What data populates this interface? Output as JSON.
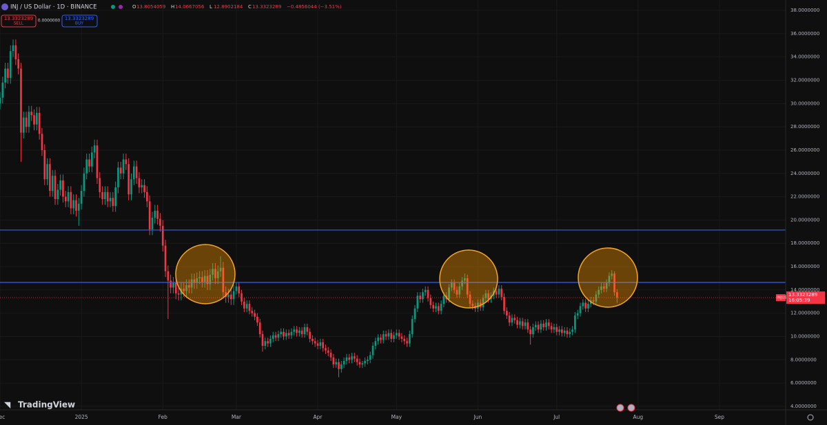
{
  "chart_data": {
    "type": "candlestick",
    "symbol": "INJ / US Dollar · 1D · BINANCE",
    "ohlc_legend": [
      {
        "label": "O",
        "value": "13.8054059"
      },
      {
        "label": "H",
        "value": "14.0667056"
      },
      {
        "label": "L",
        "value": "12.8902184"
      },
      {
        "label": "C",
        "value": "13.3323289"
      }
    ],
    "change": "−0.4856044 (−3.51%)",
    "sell_label": "SELL",
    "buy_label": "BUY",
    "spread": "0.0000000",
    "ticker": "INJUSD",
    "countdown": "16:05:39",
    "logo": "TradingView",
    "up_color": "#089981",
    "down_color": "#f23645",
    "open": [
      30.0,
      30.5,
      31.8,
      33.0,
      32.2,
      34.5,
      35.0,
      33.8,
      33.0,
      27.5,
      28.8,
      28.0,
      29.3,
      29.0,
      28.2,
      29.2,
      27.4,
      26.0,
      23.5,
      24.8,
      22.5,
      23.8,
      21.8,
      22.6,
      23.4,
      22.0,
      21.6,
      22.4,
      21.0,
      21.7,
      20.8,
      21.4,
      22.5,
      24.0,
      25.2,
      24.6,
      25.8,
      26.4,
      23.6,
      22.4,
      21.8,
      22.4,
      21.6,
      21.9,
      21.2,
      22.8,
      24.5,
      24.0,
      25.2,
      24.8,
      22.2,
      23.5,
      24.6,
      23.6,
      22.8,
      23.0,
      22.4,
      21.6,
      19.2,
      20.2,
      20.8,
      20.1,
      19.5,
      17.8,
      15.6,
      14.8,
      14.2,
      14.6,
      13.7,
      13.6,
      14.1,
      13.9,
      14.4,
      14.2,
      14.9,
      14.6,
      15.0,
      15.1,
      14.7,
      15.2,
      14.5,
      15.3,
      15.8,
      15.0,
      15.6,
      15.9,
      13.8,
      13.4,
      13.6,
      13.2,
      13.9,
      14.3,
      13.7,
      13.0,
      12.4,
      12.8,
      12.2,
      12.0,
      11.7,
      11.2,
      10.2,
      9.2,
      9.6,
      9.4,
      9.8,
      10.1,
      9.9,
      10.2,
      10.4,
      10.0,
      10.3,
      10.1,
      10.4,
      10.6,
      10.3,
      10.5,
      10.2,
      10.8,
      10.4,
      9.8,
      9.6,
      9.4,
      9.2,
      9.5,
      9.0,
      8.8,
      8.6,
      8.2,
      7.6,
      7.8,
      7.2,
      7.6,
      7.9,
      8.2,
      8.0,
      8.3,
      8.1,
      7.8,
      7.6,
      7.7,
      7.9,
      8.0,
      8.4,
      9.2,
      9.6,
      9.9,
      9.7,
      10.2,
      10.0,
      10.3,
      9.8,
      10.1,
      10.3,
      10.0,
      9.8,
      9.6,
      9.4,
      10.2,
      11.5,
      12.4,
      13.5,
      13.2,
      13.8,
      14.0,
      13.3,
      12.7,
      12.4,
      12.6,
      12.2,
      12.8,
      13.5,
      13.2,
      14.2,
      14.6,
      14.0,
      13.6,
      14.3,
      14.8,
      15.0,
      13.6,
      12.8,
      12.6,
      12.4,
      12.9,
      12.5,
      13.3,
      13.7,
      13.2,
      13.5,
      13.9,
      13.6,
      14.1,
      13.4,
      12.2,
      11.8,
      11.2,
      11.6,
      11.4,
      11.0,
      11.3,
      10.9,
      11.2,
      10.6,
      10.2,
      10.8,
      11.0,
      10.6,
      11.1,
      10.8,
      11.2,
      10.9,
      10.6,
      10.8,
      10.4,
      10.6,
      10.3,
      10.5,
      10.2,
      10.4,
      10.6,
      11.8,
      12.0,
      12.6,
      12.9,
      12.4,
      12.8,
      13.1,
      13.0,
      13.6,
      14.0,
      14.3,
      14.1,
      14.6,
      15.2,
      15.4,
      13.8054059
    ],
    "high": [
      31.0,
      32.3,
      33.5,
      33.5,
      35.0,
      35.5,
      35.5,
      34.3,
      33.5,
      29.3,
      29.3,
      29.8,
      29.8,
      29.5,
      29.7,
      29.7,
      27.9,
      26.5,
      25.3,
      25.3,
      24.3,
      24.3,
      23.1,
      23.9,
      23.9,
      22.5,
      22.9,
      22.9,
      22.2,
      22.2,
      21.9,
      23.0,
      24.5,
      25.7,
      25.7,
      26.3,
      26.9,
      26.9,
      24.1,
      22.9,
      22.9,
      22.9,
      22.4,
      22.4,
      23.3,
      25.0,
      25.0,
      25.7,
      25.7,
      25.3,
      24.0,
      25.1,
      25.1,
      24.1,
      23.5,
      23.5,
      22.9,
      22.1,
      20.7,
      21.3,
      21.3,
      20.6,
      20.0,
      18.3,
      16.1,
      15.3,
      15.1,
      15.1,
      14.2,
      14.6,
      14.6,
      14.9,
      14.9,
      15.4,
      15.4,
      15.5,
      15.6,
      15.6,
      15.7,
      15.7,
      15.8,
      16.3,
      16.3,
      16.1,
      16.9,
      16.4,
      14.3,
      14.1,
      14.1,
      14.4,
      14.6,
      14.6,
      14.0,
      13.3,
      13.1,
      13.1,
      12.5,
      12.3,
      12.0,
      11.5,
      10.5,
      9.9,
      9.9,
      10.1,
      10.4,
      10.4,
      10.5,
      10.7,
      10.7,
      10.6,
      10.6,
      10.7,
      10.9,
      10.9,
      10.8,
      10.8,
      11.1,
      11.1,
      10.7,
      10.1,
      9.9,
      9.7,
      9.8,
      9.8,
      9.3,
      9.1,
      8.9,
      8.5,
      8.1,
      8.1,
      7.9,
      8.2,
      8.5,
      8.5,
      8.6,
      8.6,
      8.4,
      8.1,
      7.9,
      8.2,
      8.3,
      8.7,
      9.5,
      9.9,
      10.2,
      10.2,
      10.5,
      10.5,
      10.6,
      10.6,
      10.4,
      10.6,
      10.6,
      10.3,
      10.1,
      9.9,
      10.5,
      11.8,
      12.7,
      13.8,
      13.8,
      14.1,
      14.3,
      14.3,
      13.6,
      13.0,
      12.9,
      12.9,
      13.1,
      13.8,
      13.8,
      14.5,
      14.9,
      14.9,
      14.3,
      14.6,
      15.1,
      15.4,
      15.3,
      13.9,
      13.1,
      12.9,
      13.2,
      13.2,
      13.6,
      14.0,
      14.0,
      13.8,
      14.2,
      14.2,
      14.4,
      14.4,
      13.7,
      12.5,
      12.1,
      11.9,
      11.9,
      11.7,
      11.6,
      11.6,
      11.5,
      11.5,
      10.9,
      11.1,
      11.3,
      11.3,
      11.4,
      11.4,
      11.5,
      11.5,
      11.2,
      11.1,
      11.1,
      10.9,
      10.9,
      10.8,
      10.8,
      10.7,
      10.9,
      12.1,
      12.3,
      12.9,
      13.2,
      13.2,
      13.1,
      13.4,
      13.4,
      13.9,
      14.3,
      14.6,
      14.6,
      14.9,
      15.5,
      15.7,
      15.6,
      14.0667056
    ],
    "low": [
      29.5,
      30.0,
      31.3,
      31.7,
      31.7,
      34.0,
      33.3,
      32.5,
      25.0,
      27.0,
      27.5,
      27.5,
      28.5,
      27.7,
      27.7,
      26.9,
      25.5,
      23.0,
      23.0,
      22.0,
      22.0,
      21.3,
      21.3,
      22.1,
      21.5,
      21.1,
      21.1,
      20.5,
      20.5,
      20.3,
      19.5,
      20.9,
      22.0,
      23.5,
      24.1,
      24.1,
      25.3,
      23.1,
      21.9,
      21.3,
      21.3,
      21.1,
      21.1,
      20.7,
      20.7,
      22.3,
      23.5,
      23.5,
      24.3,
      21.7,
      21.7,
      23.0,
      23.1,
      22.3,
      22.3,
      21.9,
      21.1,
      18.7,
      18.7,
      19.7,
      19.6,
      19.0,
      17.3,
      15.1,
      11.5,
      13.7,
      13.7,
      13.2,
      13.1,
      13.1,
      13.4,
      13.4,
      13.7,
      13.7,
      14.1,
      14.1,
      14.5,
      14.2,
      14.2,
      14.0,
      14.0,
      14.8,
      14.5,
      14.5,
      15.1,
      13.3,
      12.9,
      12.9,
      12.7,
      12.7,
      13.6,
      13.4,
      12.7,
      12.1,
      12.1,
      11.9,
      11.7,
      11.4,
      10.9,
      9.9,
      8.7,
      8.9,
      9.1,
      9.1,
      9.5,
      9.6,
      9.6,
      9.9,
      9.7,
      9.7,
      9.8,
      9.8,
      10.1,
      10.0,
      10.0,
      9.9,
      9.9,
      10.1,
      9.5,
      9.3,
      9.1,
      8.9,
      8.9,
      8.7,
      8.5,
      8.3,
      7.9,
      7.3,
      7.3,
      6.5,
      6.9,
      7.3,
      7.6,
      7.7,
      7.7,
      7.8,
      7.5,
      7.3,
      7.3,
      7.4,
      7.6,
      7.7,
      8.1,
      8.9,
      9.3,
      9.4,
      9.4,
      9.7,
      9.7,
      9.5,
      9.5,
      9.8,
      9.7,
      9.5,
      9.3,
      9.1,
      9.1,
      9.9,
      11.2,
      12.1,
      12.9,
      12.9,
      13.5,
      13.0,
      12.4,
      12.1,
      12.1,
      11.9,
      11.9,
      12.5,
      12.9,
      12.9,
      13.9,
      13.7,
      13.3,
      13.3,
      14.0,
      14.5,
      13.3,
      12.5,
      12.3,
      12.1,
      12.1,
      12.2,
      12.2,
      13.0,
      12.9,
      12.9,
      13.2,
      13.3,
      13.3,
      13.1,
      11.9,
      11.5,
      10.9,
      10.9,
      11.1,
      10.7,
      10.7,
      10.6,
      10.6,
      10.3,
      9.3,
      9.9,
      10.5,
      10.3,
      10.3,
      10.5,
      10.5,
      10.6,
      10.3,
      10.3,
      10.1,
      10.1,
      10.0,
      10.0,
      9.9,
      9.9,
      10.1,
      10.3,
      11.5,
      11.7,
      12.3,
      12.1,
      12.1,
      12.5,
      12.7,
      12.7,
      13.3,
      13.7,
      13.8,
      13.8,
      14.3,
      14.9,
      13.5,
      12.8902184
    ],
    "close": [
      30.5,
      31.8,
      33.0,
      32.2,
      34.5,
      35.0,
      33.8,
      33.0,
      27.5,
      28.8,
      28.0,
      29.3,
      29.0,
      28.2,
      29.2,
      27.4,
      26.0,
      23.5,
      24.8,
      22.5,
      23.8,
      21.8,
      22.6,
      23.4,
      22.0,
      21.6,
      22.4,
      21.0,
      21.7,
      20.8,
      21.4,
      22.5,
      24.0,
      25.2,
      24.6,
      25.8,
      26.4,
      23.6,
      22.4,
      21.8,
      22.4,
      21.6,
      21.9,
      21.2,
      22.8,
      24.5,
      24.0,
      25.2,
      24.8,
      22.2,
      23.5,
      24.6,
      23.6,
      22.8,
      23.0,
      22.4,
      21.6,
      19.2,
      20.2,
      20.8,
      20.1,
      19.5,
      17.8,
      15.6,
      14.8,
      14.2,
      14.6,
      13.7,
      13.6,
      14.1,
      13.9,
      14.4,
      14.2,
      14.9,
      14.6,
      15.0,
      15.1,
      14.7,
      15.2,
      14.5,
      15.3,
      15.8,
      15.0,
      15.6,
      15.9,
      13.8,
      13.4,
      13.6,
      13.2,
      13.9,
      14.3,
      13.7,
      13.0,
      12.4,
      12.8,
      12.2,
      12.0,
      11.7,
      11.2,
      10.2,
      9.2,
      9.6,
      9.4,
      9.8,
      10.1,
      9.9,
      10.2,
      10.4,
      10.0,
      10.3,
      10.1,
      10.4,
      10.6,
      10.3,
      10.5,
      10.2,
      10.8,
      10.4,
      9.8,
      9.6,
      9.4,
      9.2,
      9.5,
      9.0,
      8.8,
      8.6,
      8.2,
      7.6,
      7.8,
      7.2,
      7.6,
      7.9,
      8.2,
      8.0,
      8.3,
      8.1,
      7.8,
      7.6,
      7.7,
      7.9,
      8.0,
      8.4,
      9.2,
      9.6,
      9.9,
      9.7,
      10.2,
      10.0,
      10.3,
      9.8,
      10.1,
      10.3,
      10.0,
      9.8,
      9.6,
      9.4,
      10.2,
      11.5,
      12.4,
      13.5,
      13.2,
      13.8,
      14.0,
      13.3,
      12.7,
      12.4,
      12.6,
      12.2,
      12.8,
      13.5,
      13.2,
      14.2,
      14.6,
      14.0,
      13.6,
      14.3,
      14.8,
      15.0,
      13.6,
      12.8,
      12.6,
      12.4,
      12.9,
      12.5,
      13.3,
      13.7,
      13.2,
      13.5,
      13.9,
      13.6,
      14.1,
      13.4,
      12.2,
      11.8,
      11.2,
      11.6,
      11.4,
      11.0,
      11.3,
      10.9,
      11.2,
      10.6,
      10.2,
      10.8,
      11.0,
      10.6,
      11.1,
      10.8,
      11.2,
      10.9,
      10.6,
      10.8,
      10.4,
      10.6,
      10.3,
      10.5,
      10.2,
      10.4,
      10.6,
      11.8,
      12.0,
      12.6,
      12.9,
      12.4,
      12.8,
      13.1,
      13.0,
      13.6,
      14.0,
      14.3,
      14.1,
      14.6,
      15.2,
      15.4,
      13.8,
      13.3323289
    ],
    "hlines": [
      {
        "value": 19.14,
        "color": "#2962ff"
      },
      {
        "value": 14.64,
        "color": "#2962ff"
      }
    ],
    "xlim": [
      0,
      299.2
    ],
    "xticks": [
      {
        "value": 0,
        "label": "Dec"
      },
      {
        "value": 31,
        "label": "2025"
      },
      {
        "value": 62,
        "label": "Feb"
      },
      {
        "value": 90,
        "label": "Mar"
      },
      {
        "value": 121,
        "label": "Apr"
      },
      {
        "value": 151,
        "label": "May"
      },
      {
        "value": 182,
        "label": "Jun"
      },
      {
        "value": 212,
        "label": "Jul"
      },
      {
        "value": 243,
        "label": "Aug"
      },
      {
        "value": 274,
        "label": "Sep"
      }
    ],
    "ylim": [
      3.7,
      38.89
    ],
    "yticks": [
      {
        "value": 4,
        "label": "4.0000000"
      },
      {
        "value": 6,
        "label": "6.0000000"
      },
      {
        "value": 8,
        "label": "8.0000000"
      },
      {
        "value": 10,
        "label": "10.0000000"
      },
      {
        "value": 12,
        "label": "12.0000000"
      },
      {
        "value": 14,
        "label": "14.0000000"
      },
      {
        "value": 16,
        "label": "16.0000000"
      },
      {
        "value": 18,
        "label": "18.0000000"
      },
      {
        "value": 20,
        "label": "20.0000000"
      },
      {
        "value": 22,
        "label": "22.0000000"
      },
      {
        "value": 24,
        "label": "24.0000000"
      },
      {
        "value": 26,
        "label": "26.0000000"
      },
      {
        "value": 28,
        "label": "28.0000000"
      },
      {
        "value": 30,
        "label": "30.0000000"
      },
      {
        "value": 32,
        "label": "32.0000000"
      },
      {
        "value": 34,
        "label": "34.0000000"
      },
      {
        "value": 36,
        "label": "36.0000000"
      },
      {
        "value": 38,
        "label": "38.0000000"
      }
    ],
    "grid": true
  }
}
